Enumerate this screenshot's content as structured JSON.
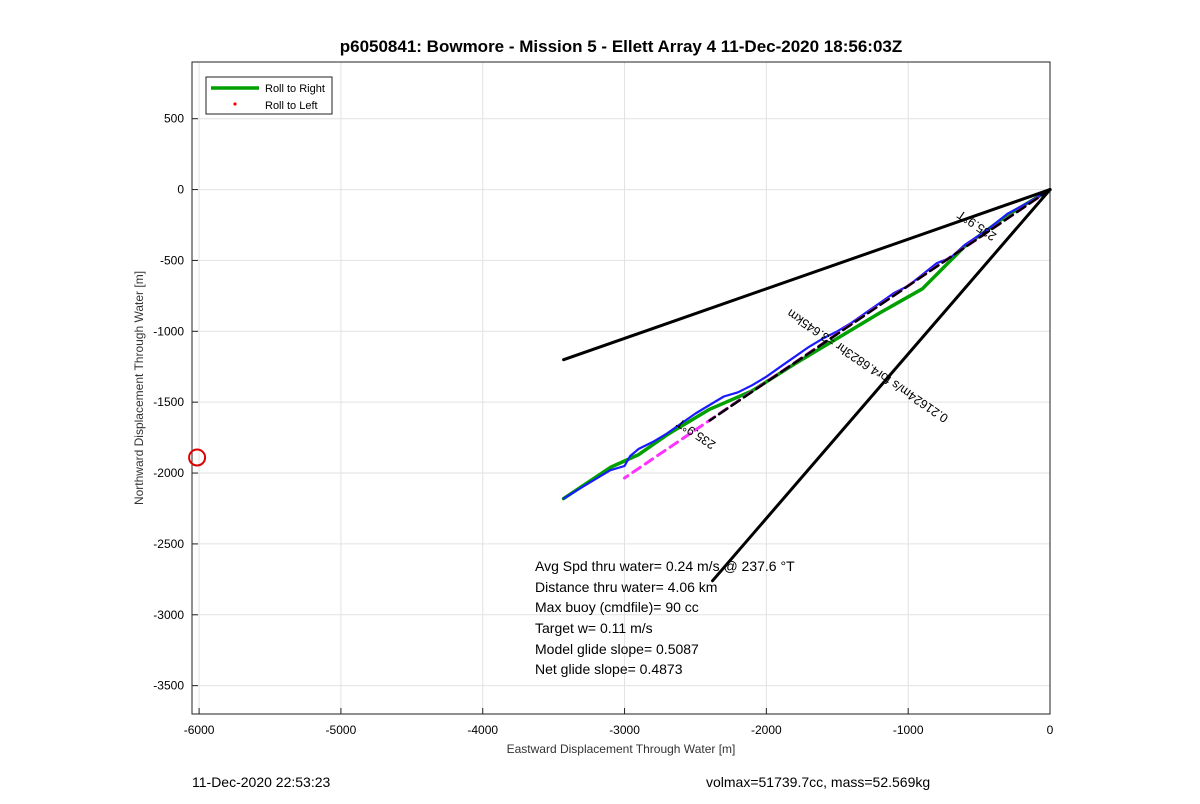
{
  "chart_data": {
    "type": "line",
    "title": "p6050841: Bowmore - Mission 5 - Ellett Array 4 11-Dec-2020 18:56:03Z",
    "xlabel": "Eastward Displacement Through Water [m]",
    "ylabel": "Northward Displacement Through Water [m]",
    "xlim": [
      -6050,
      0
    ],
    "ylim": [
      -3700,
      900
    ],
    "xticks": [
      -6000,
      -5000,
      -4000,
      -3000,
      -2000,
      -1000,
      0
    ],
    "yticks": [
      500,
      0,
      -500,
      -1000,
      -1500,
      -2000,
      -2500,
      -3000,
      -3500
    ],
    "grid": true,
    "legend": {
      "placement": "top-left",
      "entries": [
        "Roll to Right",
        "Roll to Left"
      ]
    },
    "series": [
      {
        "name": "Roll to Right",
        "color": "#00a000",
        "x": [
          0,
          -300,
          -600,
          -700,
          -900,
          -1200,
          -1500,
          -1800,
          -2100,
          -2400,
          -2700,
          -2900,
          -3100,
          -3430
        ],
        "y": [
          0,
          -180,
          -400,
          -500,
          -700,
          -870,
          -1050,
          -1230,
          -1420,
          -1550,
          -1730,
          -1870,
          -1960,
          -2180
        ]
      },
      {
        "name": "Roll to Left",
        "color": "#ff0000",
        "x": [],
        "y": []
      },
      {
        "color": "#1a1aff",
        "x": [
          0,
          -150,
          -300,
          -450,
          -600,
          -700,
          -800,
          -900,
          -1000,
          -1100,
          -1200,
          -1300,
          -1400,
          -1500,
          -1600,
          -1700,
          -1800,
          -1900,
          -2000,
          -2100,
          -2200,
          -2300,
          -2400,
          -2500,
          -2600,
          -2700,
          -2800,
          -2900,
          -2960,
          -3000,
          -3100,
          -3200,
          -3300,
          -3430
        ],
        "y": [
          0,
          -90,
          -170,
          -290,
          -390,
          -480,
          -520,
          -600,
          -680,
          -730,
          -800,
          -870,
          -940,
          -1000,
          -1050,
          -1110,
          -1180,
          -1250,
          -1320,
          -1380,
          -1430,
          -1460,
          -1520,
          -1580,
          -1650,
          -1720,
          -1780,
          -1830,
          -1880,
          -1950,
          -1980,
          -2040,
          -2100,
          -2180
        ]
      },
      {
        "color": "#ff33ff",
        "dash": true,
        "x": [
          0,
          -3000
        ],
        "y": [
          0,
          -2035
        ]
      },
      {
        "color": "#000000",
        "dash": true,
        "x": [
          0,
          -2400
        ],
        "y": [
          0,
          -1630
        ]
      },
      {
        "color": "#000000",
        "x": [
          0,
          -3430
        ],
        "y": [
          0,
          -1200
        ]
      },
      {
        "color": "#000000",
        "x": [
          0,
          -2380
        ],
        "y": [
          0,
          -2760
        ]
      }
    ],
    "marker": {
      "x": -6000,
      "y": -1890,
      "color": "#dd0000"
    },
    "annotations": [
      {
        "text": "235.9°T",
        "x": -500,
        "y": -230,
        "angle": 34.2
      },
      {
        "text": "0.21624m/s for4.6823hr =3.645km",
        "x": -1270,
        "y": -1220,
        "angle": 34.2
      },
      {
        "text": "235.9°T",
        "x": -2480,
        "y": -1700,
        "angle": 34.2
      }
    ]
  },
  "stats": [
    "Avg Spd thru water=  0.24 m/s @ 237.6 °T",
    "Distance thru water=  4.06 km",
    "Max buoy (cmdfile)= 90 cc",
    "Target w= 0.11 m/s",
    "Model glide slope= 0.5087",
    "Net glide slope= 0.4873"
  ],
  "footer": {
    "timestamp": "11-Dec-2020 22:53:23",
    "volmass": "volmax=51739.7cc, mass=52.569kg"
  }
}
